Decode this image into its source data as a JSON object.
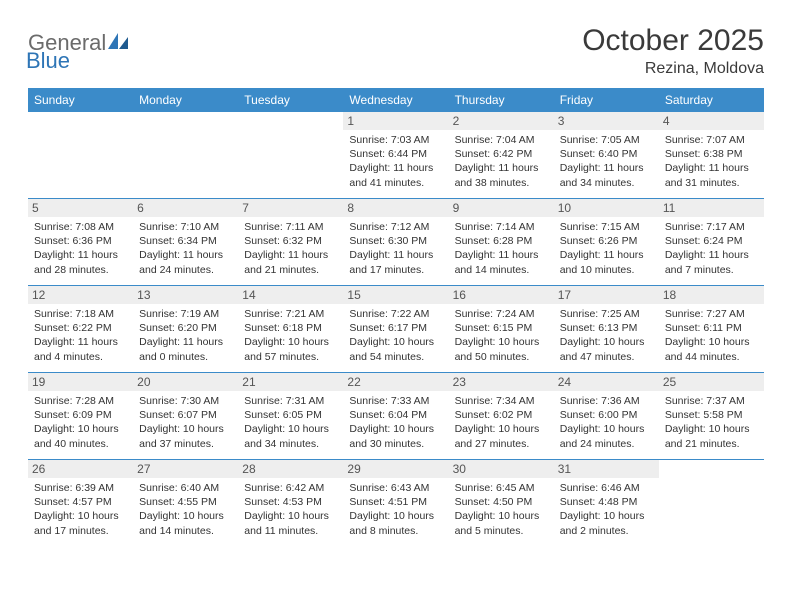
{
  "logo": {
    "text1": "General",
    "text2": "Blue"
  },
  "title": "October 2025",
  "location": "Rezina, Moldova",
  "colors": {
    "header_bg": "#3b8bc9",
    "header_text": "#ffffff",
    "daynum_bg": "#eeeeee",
    "daynum_text": "#555555",
    "rule": "#3b8bc9",
    "title_text": "#3a3a3a",
    "logo_gray": "#6b6b6b",
    "logo_blue": "#2e75b6"
  },
  "day_names": [
    "Sunday",
    "Monday",
    "Tuesday",
    "Wednesday",
    "Thursday",
    "Friday",
    "Saturday"
  ],
  "weeks": [
    [
      {
        "n": "",
        "sr": "",
        "ss": "",
        "dl": ""
      },
      {
        "n": "",
        "sr": "",
        "ss": "",
        "dl": ""
      },
      {
        "n": "",
        "sr": "",
        "ss": "",
        "dl": ""
      },
      {
        "n": "1",
        "sr": "Sunrise: 7:03 AM",
        "ss": "Sunset: 6:44 PM",
        "dl": "Daylight: 11 hours and 41 minutes."
      },
      {
        "n": "2",
        "sr": "Sunrise: 7:04 AM",
        "ss": "Sunset: 6:42 PM",
        "dl": "Daylight: 11 hours and 38 minutes."
      },
      {
        "n": "3",
        "sr": "Sunrise: 7:05 AM",
        "ss": "Sunset: 6:40 PM",
        "dl": "Daylight: 11 hours and 34 minutes."
      },
      {
        "n": "4",
        "sr": "Sunrise: 7:07 AM",
        "ss": "Sunset: 6:38 PM",
        "dl": "Daylight: 11 hours and 31 minutes."
      }
    ],
    [
      {
        "n": "5",
        "sr": "Sunrise: 7:08 AM",
        "ss": "Sunset: 6:36 PM",
        "dl": "Daylight: 11 hours and 28 minutes."
      },
      {
        "n": "6",
        "sr": "Sunrise: 7:10 AM",
        "ss": "Sunset: 6:34 PM",
        "dl": "Daylight: 11 hours and 24 minutes."
      },
      {
        "n": "7",
        "sr": "Sunrise: 7:11 AM",
        "ss": "Sunset: 6:32 PM",
        "dl": "Daylight: 11 hours and 21 minutes."
      },
      {
        "n": "8",
        "sr": "Sunrise: 7:12 AM",
        "ss": "Sunset: 6:30 PM",
        "dl": "Daylight: 11 hours and 17 minutes."
      },
      {
        "n": "9",
        "sr": "Sunrise: 7:14 AM",
        "ss": "Sunset: 6:28 PM",
        "dl": "Daylight: 11 hours and 14 minutes."
      },
      {
        "n": "10",
        "sr": "Sunrise: 7:15 AM",
        "ss": "Sunset: 6:26 PM",
        "dl": "Daylight: 11 hours and 10 minutes."
      },
      {
        "n": "11",
        "sr": "Sunrise: 7:17 AM",
        "ss": "Sunset: 6:24 PM",
        "dl": "Daylight: 11 hours and 7 minutes."
      }
    ],
    [
      {
        "n": "12",
        "sr": "Sunrise: 7:18 AM",
        "ss": "Sunset: 6:22 PM",
        "dl": "Daylight: 11 hours and 4 minutes."
      },
      {
        "n": "13",
        "sr": "Sunrise: 7:19 AM",
        "ss": "Sunset: 6:20 PM",
        "dl": "Daylight: 11 hours and 0 minutes."
      },
      {
        "n": "14",
        "sr": "Sunrise: 7:21 AM",
        "ss": "Sunset: 6:18 PM",
        "dl": "Daylight: 10 hours and 57 minutes."
      },
      {
        "n": "15",
        "sr": "Sunrise: 7:22 AM",
        "ss": "Sunset: 6:17 PM",
        "dl": "Daylight: 10 hours and 54 minutes."
      },
      {
        "n": "16",
        "sr": "Sunrise: 7:24 AM",
        "ss": "Sunset: 6:15 PM",
        "dl": "Daylight: 10 hours and 50 minutes."
      },
      {
        "n": "17",
        "sr": "Sunrise: 7:25 AM",
        "ss": "Sunset: 6:13 PM",
        "dl": "Daylight: 10 hours and 47 minutes."
      },
      {
        "n": "18",
        "sr": "Sunrise: 7:27 AM",
        "ss": "Sunset: 6:11 PM",
        "dl": "Daylight: 10 hours and 44 minutes."
      }
    ],
    [
      {
        "n": "19",
        "sr": "Sunrise: 7:28 AM",
        "ss": "Sunset: 6:09 PM",
        "dl": "Daylight: 10 hours and 40 minutes."
      },
      {
        "n": "20",
        "sr": "Sunrise: 7:30 AM",
        "ss": "Sunset: 6:07 PM",
        "dl": "Daylight: 10 hours and 37 minutes."
      },
      {
        "n": "21",
        "sr": "Sunrise: 7:31 AM",
        "ss": "Sunset: 6:05 PM",
        "dl": "Daylight: 10 hours and 34 minutes."
      },
      {
        "n": "22",
        "sr": "Sunrise: 7:33 AM",
        "ss": "Sunset: 6:04 PM",
        "dl": "Daylight: 10 hours and 30 minutes."
      },
      {
        "n": "23",
        "sr": "Sunrise: 7:34 AM",
        "ss": "Sunset: 6:02 PM",
        "dl": "Daylight: 10 hours and 27 minutes."
      },
      {
        "n": "24",
        "sr": "Sunrise: 7:36 AM",
        "ss": "Sunset: 6:00 PM",
        "dl": "Daylight: 10 hours and 24 minutes."
      },
      {
        "n": "25",
        "sr": "Sunrise: 7:37 AM",
        "ss": "Sunset: 5:58 PM",
        "dl": "Daylight: 10 hours and 21 minutes."
      }
    ],
    [
      {
        "n": "26",
        "sr": "Sunrise: 6:39 AM",
        "ss": "Sunset: 4:57 PM",
        "dl": "Daylight: 10 hours and 17 minutes."
      },
      {
        "n": "27",
        "sr": "Sunrise: 6:40 AM",
        "ss": "Sunset: 4:55 PM",
        "dl": "Daylight: 10 hours and 14 minutes."
      },
      {
        "n": "28",
        "sr": "Sunrise: 6:42 AM",
        "ss": "Sunset: 4:53 PM",
        "dl": "Daylight: 10 hours and 11 minutes."
      },
      {
        "n": "29",
        "sr": "Sunrise: 6:43 AM",
        "ss": "Sunset: 4:51 PM",
        "dl": "Daylight: 10 hours and 8 minutes."
      },
      {
        "n": "30",
        "sr": "Sunrise: 6:45 AM",
        "ss": "Sunset: 4:50 PM",
        "dl": "Daylight: 10 hours and 5 minutes."
      },
      {
        "n": "31",
        "sr": "Sunrise: 6:46 AM",
        "ss": "Sunset: 4:48 PM",
        "dl": "Daylight: 10 hours and 2 minutes."
      },
      {
        "n": "",
        "sr": "",
        "ss": "",
        "dl": ""
      }
    ]
  ]
}
